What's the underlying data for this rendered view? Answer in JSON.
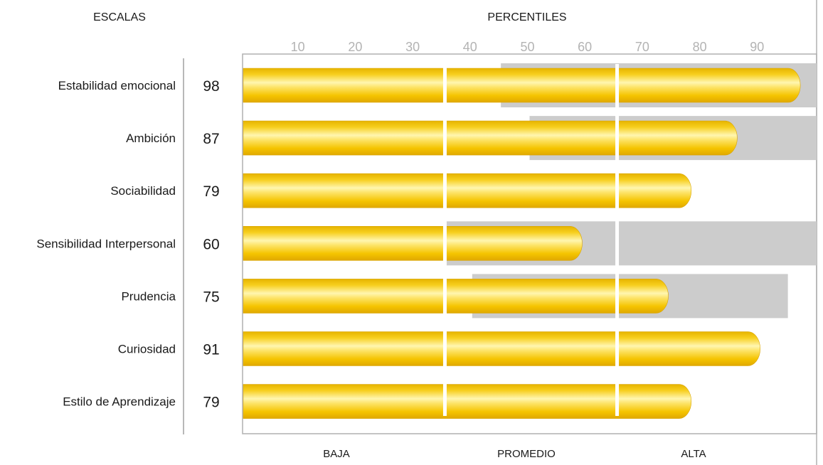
{
  "headers": {
    "scales": "ESCALAS",
    "percentiles": "PERCENTILES"
  },
  "zones": [
    "BAJA",
    "PROMEDIO",
    "ALTA"
  ],
  "colors": {
    "bar_gold": "#f5c400",
    "bar_highlight": "#fff6b0",
    "range_gray": "#cccccc",
    "frame": "#b0b0b0",
    "tick_text": "#b3b3b3"
  },
  "chart_data": {
    "type": "bar",
    "orientation": "horizontal",
    "title": "",
    "xlabel": "PERCENTILES",
    "ylabel": "ESCALAS",
    "xlim": [
      0,
      100
    ],
    "xticks": [
      10,
      20,
      30,
      40,
      50,
      60,
      70,
      80,
      90
    ],
    "zone_boundaries": [
      35,
      65
    ],
    "categories": [
      "Estabilidad emocional",
      "Ambición",
      "Sociabilidad",
      "Sensibilidad Interpersonal",
      "Prudencia",
      "Curiosidad",
      "Estilo de Aprendizaje"
    ],
    "values": [
      98,
      87,
      79,
      60,
      75,
      91,
      79
    ],
    "reference_ranges": [
      [
        45,
        100
      ],
      [
        50,
        100
      ],
      null,
      [
        35,
        100
      ],
      [
        40,
        95
      ],
      null,
      null
    ],
    "grid": false
  }
}
